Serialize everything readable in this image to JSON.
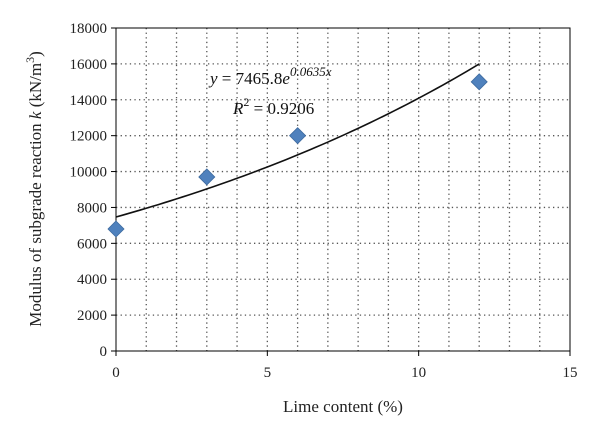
{
  "chart_data": {
    "type": "scatter",
    "xlabel": "Lime content (%)",
    "ylabel_prefix": "Modulus of subgrade reaction ",
    "ylabel_var": "k",
    "ylabel_unit_start": " (kN/m",
    "ylabel_unit_sup": "3",
    "ylabel_unit_end": ")",
    "xlim": [
      0,
      15
    ],
    "ylim": [
      0,
      18000
    ],
    "xticks": [
      0,
      5,
      10,
      15
    ],
    "yticks": [
      0,
      2000,
      4000,
      6000,
      8000,
      10000,
      12000,
      14000,
      16000,
      18000
    ],
    "grid": true,
    "series": [
      {
        "marker": "diamond",
        "color": "#4f81bd",
        "points": [
          {
            "x": 0,
            "y": 6800
          },
          {
            "x": 3,
            "y": 9700
          },
          {
            "x": 6,
            "y": 12000
          },
          {
            "x": 12,
            "y": 15000
          }
        ]
      }
    ],
    "trendline": {
      "kind": "exponential",
      "a": 7465.8,
      "b": 0.0635,
      "x_range": [
        0,
        12
      ],
      "color": "#111111"
    },
    "annotations": {
      "equation_y": "y",
      "equation_eq": " = 7465.8",
      "equation_e": "e",
      "equation_exp": "0.0635x",
      "r2_r": "R",
      "r2_sup": "2",
      "r2_value": " = 0.9206"
    }
  }
}
